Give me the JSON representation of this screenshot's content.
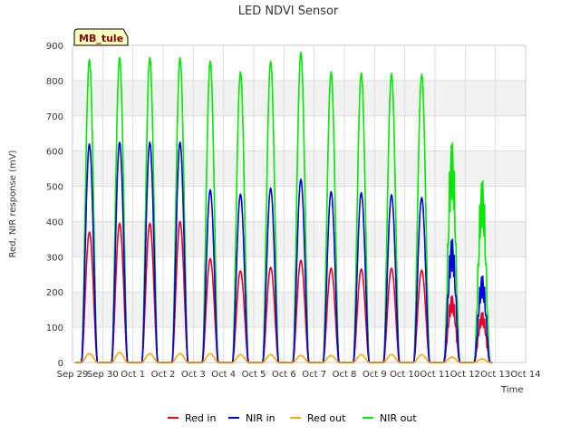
{
  "chart_data": {
    "type": "line",
    "title": "LED NDVI Sensor",
    "xlabel": "Time",
    "ylabel": "Red, NIR response (mV)",
    "site_label": "MB_tule",
    "ylim": [
      0,
      900
    ],
    "yticks": [
      0,
      100,
      200,
      300,
      400,
      500,
      600,
      700,
      800,
      900
    ],
    "xlim": [
      0,
      15
    ],
    "xticks": [
      {
        "x": 0,
        "label": "Sep 29"
      },
      {
        "x": 1,
        "label": "Sep 30"
      },
      {
        "x": 2,
        "label": "Oct 1"
      },
      {
        "x": 3,
        "label": "Oct 2"
      },
      {
        "x": 4,
        "label": "Oct 3"
      },
      {
        "x": 5,
        "label": "Oct 4"
      },
      {
        "x": 6,
        "label": "Oct 5"
      },
      {
        "x": 7,
        "label": "Oct 6"
      },
      {
        "x": 8,
        "label": "Oct 7"
      },
      {
        "x": 9,
        "label": "Oct 8"
      },
      {
        "x": 10,
        "label": "Oct 9"
      },
      {
        "x": 11,
        "label": "Oct 10"
      },
      {
        "x": 12,
        "label": "Oct 11"
      },
      {
        "x": 13,
        "label": "Oct 12"
      },
      {
        "x": 14,
        "label": "Oct 13"
      },
      {
        "x": 15,
        "label": "Oct 14"
      }
    ],
    "grid": true,
    "legend_position": "bottom",
    "series": [
      {
        "name": "Red in",
        "color": "#e8001b",
        "peaks": [
          370,
          395,
          395,
          400,
          295,
          260,
          270,
          290,
          268,
          265,
          268,
          262,
          200,
          150
        ]
      },
      {
        "name": "NIR in",
        "color": "#0000e0",
        "peaks": [
          620,
          625,
          625,
          625,
          490,
          478,
          495,
          520,
          485,
          482,
          476,
          468,
          370,
          260
        ]
      },
      {
        "name": "Red out",
        "color": "#ffa500",
        "peaks": [
          25,
          28,
          25,
          25,
          25,
          22,
          22,
          20,
          20,
          22,
          22,
          22,
          15,
          10
        ]
      },
      {
        "name": "NIR out",
        "color": "#00e800",
        "peaks": [
          860,
          865,
          865,
          865,
          855,
          825,
          855,
          880,
          825,
          822,
          820,
          818,
          660,
          545
        ]
      }
    ],
    "day_starts": [
      0.3,
      1.3,
      2.3,
      3.3,
      4.3,
      5.3,
      6.3,
      7.3,
      8.3,
      9.3,
      10.3,
      11.3,
      12.3,
      13.3
    ]
  }
}
